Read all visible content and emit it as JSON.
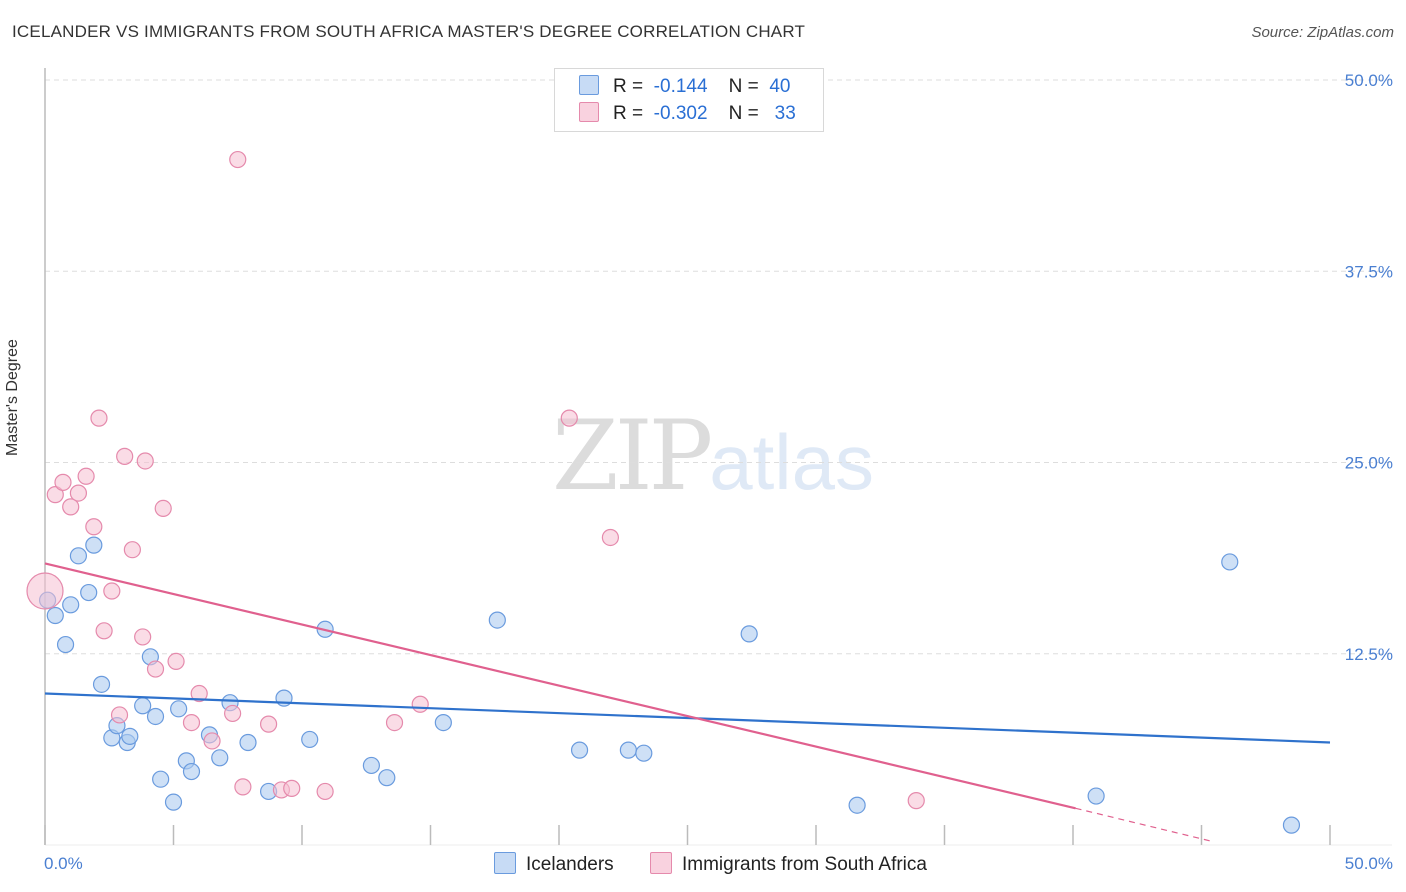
{
  "title": "ICELANDER VS IMMIGRANTS FROM SOUTH AFRICA MASTER'S DEGREE CORRELATION CHART",
  "source": "Source: ZipAtlas.com",
  "watermark": {
    "zip": "ZIP",
    "atlas": "atlas"
  },
  "legend": {
    "rows": [
      {
        "r_label": "R =",
        "r_value": "-0.144",
        "n_label": "N =",
        "n_value": "40"
      },
      {
        "r_label": "R =",
        "r_value": "-0.302",
        "n_label": "N =",
        "n_value": "33"
      }
    ]
  },
  "bottom_legend": [
    "Icelanders",
    "Immigrants from South Africa"
  ],
  "colors": {
    "blue_fill": "#aecbf0",
    "blue_stroke": "#6a9bde",
    "blue_line": "#2f72cc",
    "pink_fill": "#f6bfd2",
    "pink_stroke": "#e58aac",
    "pink_line": "#e0608e",
    "grid": "#dddddd",
    "tick_text": "#4a7fd1"
  },
  "chart_data": {
    "type": "scatter",
    "title": "ICELANDER VS IMMIGRANTS FROM SOUTH AFRICA MASTER'S DEGREE CORRELATION CHART",
    "xlabel": "",
    "ylabel": "Master's Degree",
    "xlim": [
      0,
      50
    ],
    "ylim": [
      0,
      50
    ],
    "x_tick_labels": [
      "0.0%",
      "50.0%"
    ],
    "y_tick_labels": [
      "12.5%",
      "25.0%",
      "37.5%",
      "50.0%"
    ],
    "y_ticks": [
      12.5,
      25.0,
      37.5,
      50.0
    ],
    "grid": true,
    "legend_position": "top-center",
    "series": [
      {
        "name": "Icelanders",
        "r": -0.144,
        "n": 40,
        "trend": {
          "x": [
            0,
            50
          ],
          "y": [
            9.9,
            6.7
          ]
        },
        "points": [
          [
            0.1,
            16.0
          ],
          [
            0.4,
            15.0
          ],
          [
            0.8,
            13.1
          ],
          [
            1.0,
            15.7
          ],
          [
            1.3,
            18.9
          ],
          [
            1.7,
            16.5
          ],
          [
            1.9,
            19.6
          ],
          [
            2.2,
            10.5
          ],
          [
            2.6,
            7.0
          ],
          [
            2.8,
            7.8
          ],
          [
            3.2,
            6.7
          ],
          [
            3.3,
            7.1
          ],
          [
            3.8,
            9.1
          ],
          [
            4.1,
            12.3
          ],
          [
            4.3,
            8.4
          ],
          [
            4.5,
            4.3
          ],
          [
            5.0,
            2.8
          ],
          [
            5.2,
            8.9
          ],
          [
            5.5,
            5.5
          ],
          [
            5.7,
            4.8
          ],
          [
            6.4,
            7.2
          ],
          [
            6.8,
            5.7
          ],
          [
            7.2,
            9.3
          ],
          [
            7.9,
            6.7
          ],
          [
            8.7,
            3.5
          ],
          [
            9.3,
            9.6
          ],
          [
            10.3,
            6.9
          ],
          [
            10.9,
            14.1
          ],
          [
            12.7,
            5.2
          ],
          [
            13.3,
            4.4
          ],
          [
            15.5,
            8.0
          ],
          [
            17.6,
            14.7
          ],
          [
            20.8,
            6.2
          ],
          [
            22.7,
            6.2
          ],
          [
            23.3,
            6.0
          ],
          [
            27.4,
            13.8
          ],
          [
            31.6,
            2.6
          ],
          [
            40.9,
            3.2
          ],
          [
            46.1,
            18.5
          ],
          [
            48.5,
            1.3
          ]
        ]
      },
      {
        "name": "Immigrants from South Africa",
        "r": -0.302,
        "n": 33,
        "trend": {
          "x": [
            0,
            40.1
          ],
          "y": [
            18.4,
            2.4
          ]
        },
        "trend_dashed": {
          "x": [
            40.1,
            45.5
          ],
          "y": [
            2.4,
            0.2
          ]
        },
        "points": [
          [
            0.0,
            16.6
          ],
          [
            0.4,
            22.9
          ],
          [
            0.7,
            23.7
          ],
          [
            1.0,
            22.1
          ],
          [
            1.3,
            23.0
          ],
          [
            1.6,
            24.1
          ],
          [
            1.9,
            20.8
          ],
          [
            2.1,
            27.9
          ],
          [
            2.3,
            14.0
          ],
          [
            2.6,
            16.6
          ],
          [
            2.9,
            8.5
          ],
          [
            3.1,
            25.4
          ],
          [
            3.4,
            19.3
          ],
          [
            3.8,
            13.6
          ],
          [
            3.9,
            25.1
          ],
          [
            4.3,
            11.5
          ],
          [
            4.6,
            22.0
          ],
          [
            5.1,
            12.0
          ],
          [
            5.7,
            8.0
          ],
          [
            6.0,
            9.9
          ],
          [
            6.5,
            6.8
          ],
          [
            7.3,
            8.6
          ],
          [
            7.5,
            44.8
          ],
          [
            7.7,
            3.8
          ],
          [
            8.7,
            7.9
          ],
          [
            9.2,
            3.6
          ],
          [
            9.6,
            3.7
          ],
          [
            10.9,
            3.5
          ],
          [
            13.6,
            8.0
          ],
          [
            14.6,
            9.2
          ],
          [
            20.4,
            27.9
          ],
          [
            22.0,
            20.1
          ],
          [
            33.9,
            2.9
          ]
        ]
      }
    ]
  }
}
